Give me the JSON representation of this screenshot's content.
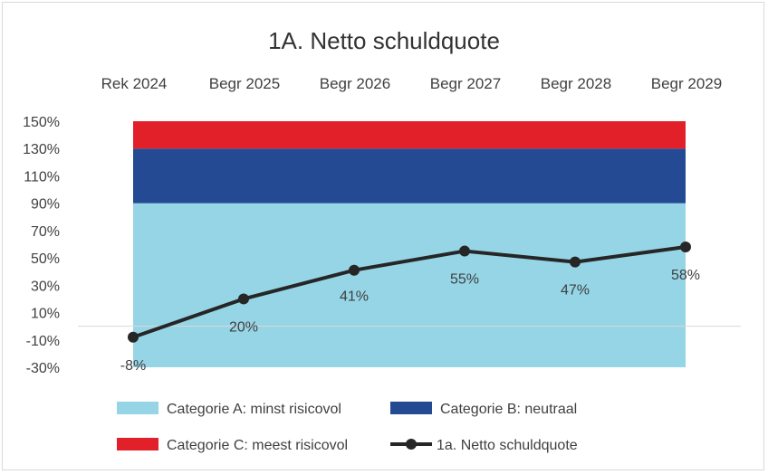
{
  "chart_data": {
    "type": "line",
    "title": "1A. Netto schuldquote",
    "categories": [
      "Rek 2024",
      "Begr 2025",
      "Begr 2026",
      "Begr 2027",
      "Begr 2028",
      "Begr 2029"
    ],
    "y_ticks": [
      "150%",
      "130%",
      "110%",
      "90%",
      "70%",
      "50%",
      "30%",
      "10%",
      "-10%",
      "-30%"
    ],
    "ylim": [
      -30,
      150
    ],
    "bands": [
      {
        "name": "Categorie A: minst risicovol",
        "from": -30,
        "to": 90,
        "color": "#95d5e6"
      },
      {
        "name": "Categorie B: neutraal",
        "from": 90,
        "to": 130,
        "color": "#234a93"
      },
      {
        "name": "Categorie C: meest risicovol",
        "from": 130,
        "to": 150,
        "color": "#e2202a"
      }
    ],
    "series": [
      {
        "name": "1a. Netto schuldquote",
        "values": [
          -8,
          20,
          41,
          55,
          47,
          58
        ],
        "labels": [
          "-8%",
          "20%",
          "41%",
          "55%",
          "47%",
          "58%"
        ],
        "color": "#262626"
      }
    ],
    "zero_line": 0,
    "legend": [
      "Categorie A: minst risicovol",
      "Categorie B: neutraal",
      "Categorie C: meest risicovol",
      "1a. Netto schuldquote"
    ],
    "legend_position": "bottom",
    "grid": false
  }
}
